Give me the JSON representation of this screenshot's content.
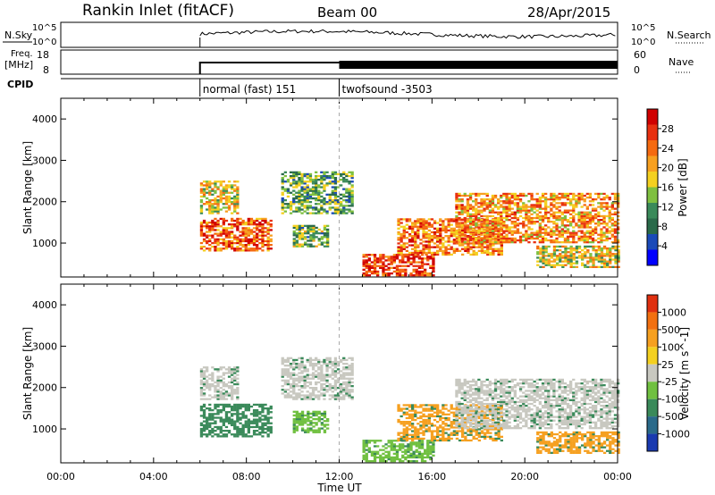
{
  "header": {
    "station": "Rankin Inlet (fitACF)",
    "beam": "Beam 00",
    "date": "28/Apr/2015"
  },
  "nsky_panel": {
    "label": "N.Sky",
    "right_label": "N.Search",
    "left_ticks": [
      "10^5",
      "10^0"
    ],
    "right_ticks": [
      "10^5",
      "10^0"
    ]
  },
  "freq_panel": {
    "label_line1": "Freq.",
    "label_line2": "[MHz]",
    "right_label": "Nave",
    "left_ticks": [
      "18",
      "8"
    ],
    "right_ticks": [
      "60",
      "0"
    ]
  },
  "cpid": {
    "label": "CPID",
    "segments": [
      {
        "name": "normal (fast) 151",
        "start_hour": 6.0
      },
      {
        "name": "twofsound -3503",
        "start_hour": 12.0
      }
    ]
  },
  "chart_data": [
    {
      "type": "heatmap",
      "name": "Power",
      "ylabel": "Slant Range [km]",
      "xlabel": "Time UT",
      "xlim": [
        0,
        24
      ],
      "ylim": [
        180,
        4500
      ],
      "y_ticks": [
        1000,
        2000,
        3000,
        4000
      ],
      "colorbar_label": "Power [dB]",
      "colorbar_ticks": [
        "28",
        "24",
        "20",
        "16",
        "12",
        "8",
        "4"
      ],
      "colorbar_colors": [
        "#0000ff",
        "#1a4ab8",
        "#2a6a4a",
        "#3a8a5a",
        "#7fc040",
        "#f4d020",
        "#f7a020",
        "#f56a10",
        "#e83010",
        "#d00000"
      ],
      "blobs": [
        {
          "t0": 6.0,
          "t1": 7.6,
          "r0": 1700,
          "r1": 2500,
          "level": 0.55
        },
        {
          "t0": 6.0,
          "t1": 9.0,
          "r0": 800,
          "r1": 1600,
          "level": 0.8
        },
        {
          "t0": 9.5,
          "t1": 12.5,
          "r0": 1700,
          "r1": 2700,
          "level": 0.35
        },
        {
          "t0": 10.0,
          "t1": 11.5,
          "r0": 900,
          "r1": 1400,
          "level": 0.4
        },
        {
          "t0": 13.0,
          "t1": 16.0,
          "r0": 200,
          "r1": 700,
          "level": 0.9
        },
        {
          "t0": 14.5,
          "t1": 19.0,
          "r0": 700,
          "r1": 1600,
          "level": 0.75
        },
        {
          "t0": 17.0,
          "t1": 24.0,
          "r0": 1000,
          "r1": 2200,
          "level": 0.7
        },
        {
          "t0": 20.5,
          "t1": 24.0,
          "r0": 400,
          "r1": 900,
          "level": 0.55
        }
      ]
    },
    {
      "type": "heatmap",
      "name": "Velocity",
      "ylabel": "Slant Range [km]",
      "xlabel": "Time UT",
      "xlim": [
        0,
        24
      ],
      "ylim": [
        180,
        4500
      ],
      "y_ticks": [
        1000,
        2000,
        3000,
        4000
      ],
      "x_ticks": [
        "00:00",
        "04:00",
        "08:00",
        "12:00",
        "16:00",
        "20:00",
        "00:00"
      ],
      "colorbar_label": "Velocity [m s^-1]",
      "colorbar_ticks": [
        "1000",
        "500",
        "100",
        "25",
        "-25",
        "-100",
        "-500",
        "-1000"
      ],
      "colorbar_colors": [
        "#1a3ab0",
        "#2a6a8a",
        "#3a8a5a",
        "#70c040",
        "#c8c8c0",
        "#f4d020",
        "#f6a020",
        "#f27010",
        "#e03010"
      ],
      "blobs": [
        {
          "t0": 6.0,
          "t1": 7.6,
          "r0": 1700,
          "r1": 2500,
          "color": "#c8c8c0"
        },
        {
          "t0": 6.0,
          "t1": 9.0,
          "r0": 800,
          "r1": 1600,
          "color": "#3a8a5a"
        },
        {
          "t0": 9.5,
          "t1": 12.5,
          "r0": 1700,
          "r1": 2700,
          "color": "#c8c8c0"
        },
        {
          "t0": 10.0,
          "t1": 11.5,
          "r0": 900,
          "r1": 1400,
          "color": "#70c040"
        },
        {
          "t0": 13.0,
          "t1": 16.0,
          "r0": 200,
          "r1": 700,
          "color": "#70c040"
        },
        {
          "t0": 14.5,
          "t1": 19.0,
          "r0": 700,
          "r1": 1600,
          "color": "#f6a020"
        },
        {
          "t0": 17.0,
          "t1": 24.0,
          "r0": 1000,
          "r1": 2200,
          "color": "#c8c8c0"
        },
        {
          "t0": 20.5,
          "t1": 24.0,
          "r0": 400,
          "r1": 900,
          "color": "#f6a020"
        }
      ]
    }
  ]
}
